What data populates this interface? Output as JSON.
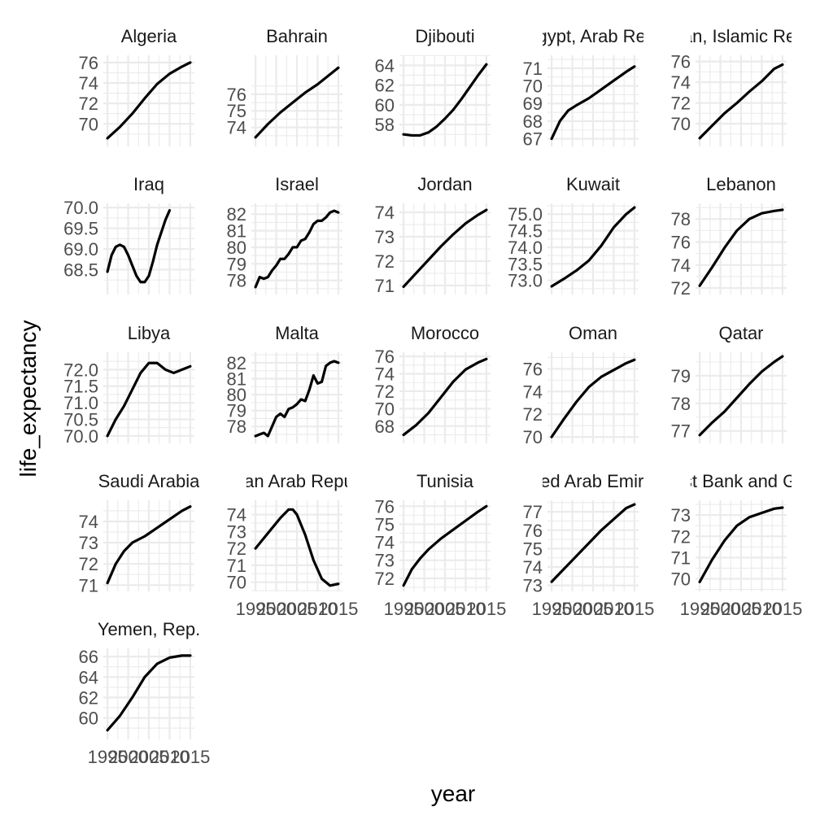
{
  "chart_data": {
    "type": "line",
    "xlabel": "year",
    "ylabel": "life_expectancy",
    "x_range": [
      1995,
      2015
    ],
    "x_ticks": [
      1995,
      2000,
      2005,
      2010,
      2015
    ],
    "x_tick_labels": [
      "1995",
      "2000",
      "2005",
      "2010",
      "2015"
    ],
    "grid": true,
    "facet_columns": 5,
    "facets": [
      {
        "title": "Algeria",
        "ylim": [
          68.2,
          76.3
        ],
        "y_ticks": [
          70,
          72,
          74,
          76
        ],
        "points": [
          [
            1995,
            68.6
          ],
          [
            1998,
            69.7
          ],
          [
            2001,
            71.0
          ],
          [
            2004,
            72.5
          ],
          [
            2007,
            73.9
          ],
          [
            2010,
            74.9
          ],
          [
            2013,
            75.6
          ],
          [
            2015,
            76.0
          ]
        ]
      },
      {
        "title": "Bahrain",
        "ylim": [
          73.1,
          78.1
        ],
        "y_ticks": [
          74,
          75,
          76
        ],
        "points": [
          [
            1995,
            73.4
          ],
          [
            1998,
            74.2
          ],
          [
            2001,
            74.9
          ],
          [
            2004,
            75.5
          ],
          [
            2007,
            76.1
          ],
          [
            2010,
            76.6
          ],
          [
            2013,
            77.2
          ],
          [
            2015,
            77.6
          ]
        ]
      },
      {
        "title": "Djibouti",
        "ylim": [
          56.2,
          64.6
        ],
        "y_ticks": [
          58,
          60,
          62,
          64
        ],
        "points": [
          [
            1995,
            57.0
          ],
          [
            1997,
            56.9
          ],
          [
            1999,
            56.9
          ],
          [
            2001,
            57.2
          ],
          [
            2003,
            57.8
          ],
          [
            2005,
            58.6
          ],
          [
            2007,
            59.5
          ],
          [
            2009,
            60.6
          ],
          [
            2011,
            61.8
          ],
          [
            2013,
            63.0
          ],
          [
            2015,
            64.1
          ]
        ]
      },
      {
        "title": "Egypt, Arab Rep.",
        "ylim": [
          66.8,
          71.5
        ],
        "y_ticks": [
          67,
          68,
          69,
          70,
          71
        ],
        "points": [
          [
            1995,
            67.0
          ],
          [
            1997,
            68.0
          ],
          [
            1999,
            68.6
          ],
          [
            2001,
            68.9
          ],
          [
            2004,
            69.3
          ],
          [
            2007,
            69.8
          ],
          [
            2010,
            70.3
          ],
          [
            2013,
            70.8
          ],
          [
            2015,
            71.1
          ]
        ]
      },
      {
        "title": "Iran, Islamic Rep.",
        "ylim": [
          68.2,
          76.2
        ],
        "y_ticks": [
          70,
          72,
          74,
          76
        ],
        "points": [
          [
            1995,
            68.6
          ],
          [
            1998,
            69.8
          ],
          [
            2001,
            71.0
          ],
          [
            2004,
            72.0
          ],
          [
            2007,
            73.1
          ],
          [
            2010,
            74.1
          ],
          [
            2013,
            75.3
          ],
          [
            2015,
            75.7
          ]
        ]
      },
      {
        "title": "Iraq",
        "ylim": [
          68.0,
          70.0
        ],
        "y_ticks": [
          68.5,
          69.0,
          69.5,
          70.0
        ],
        "points": [
          [
            1995,
            68.45
          ],
          [
            1996,
            68.85
          ],
          [
            1997,
            69.05
          ],
          [
            1998,
            69.1
          ],
          [
            1999,
            69.05
          ],
          [
            2000,
            68.85
          ],
          [
            2001,
            68.6
          ],
          [
            2002,
            68.35
          ],
          [
            2003,
            68.2
          ],
          [
            2004,
            68.2
          ],
          [
            2005,
            68.35
          ],
          [
            2006,
            68.7
          ],
          [
            2007,
            69.1
          ],
          [
            2008,
            69.4
          ],
          [
            2009,
            69.7
          ],
          [
            2010,
            69.93
          ]
        ]
      },
      {
        "title": "Israel",
        "ylim": [
          77.4,
          82.4
        ],
        "y_ticks": [
          78,
          79,
          80,
          81,
          82
        ],
        "points": [
          [
            1995,
            77.6
          ],
          [
            1996,
            78.2
          ],
          [
            1997,
            78.1
          ],
          [
            1998,
            78.2
          ],
          [
            1999,
            78.6
          ],
          [
            2000,
            78.9
          ],
          [
            2001,
            79.3
          ],
          [
            2002,
            79.3
          ],
          [
            2003,
            79.6
          ],
          [
            2004,
            80.0
          ],
          [
            2005,
            80.0
          ],
          [
            2006,
            80.4
          ],
          [
            2007,
            80.5
          ],
          [
            2008,
            80.9
          ],
          [
            2009,
            81.4
          ],
          [
            2010,
            81.6
          ],
          [
            2011,
            81.6
          ],
          [
            2012,
            81.8
          ],
          [
            2013,
            82.1
          ],
          [
            2014,
            82.2
          ],
          [
            2015,
            82.1
          ]
        ]
      },
      {
        "title": "Jordan",
        "ylim": [
          70.8,
          74.2
        ],
        "y_ticks": [
          71,
          72,
          73,
          74
        ],
        "points": [
          [
            1995,
            70.95
          ],
          [
            1998,
            71.5
          ],
          [
            2001,
            72.05
          ],
          [
            2004,
            72.6
          ],
          [
            2007,
            73.1
          ],
          [
            2010,
            73.55
          ],
          [
            2013,
            73.9
          ],
          [
            2015,
            74.1
          ]
        ]
      },
      {
        "title": "Kuwait",
        "ylim": [
          72.7,
          75.2
        ],
        "y_ticks": [
          73.0,
          73.5,
          74.0,
          74.5,
          75.0
        ],
        "points": [
          [
            1995,
            72.82
          ],
          [
            1998,
            73.05
          ],
          [
            2001,
            73.3
          ],
          [
            2004,
            73.6
          ],
          [
            2007,
            74.05
          ],
          [
            2010,
            74.6
          ],
          [
            2013,
            75.0
          ],
          [
            2015,
            75.2
          ]
        ]
      },
      {
        "title": "Lebanon",
        "ylim": [
          71.8,
          79.0
        ],
        "y_ticks": [
          72,
          74,
          76,
          78
        ],
        "points": [
          [
            1995,
            72.2
          ],
          [
            1998,
            73.8
          ],
          [
            2001,
            75.5
          ],
          [
            2004,
            77.0
          ],
          [
            2007,
            78.0
          ],
          [
            2010,
            78.5
          ],
          [
            2013,
            78.7
          ],
          [
            2015,
            78.8
          ]
        ]
      },
      {
        "title": "Libya",
        "ylim": [
          69.9,
          72.4
        ],
        "y_ticks": [
          70.0,
          70.5,
          71.0,
          71.5,
          72.0
        ],
        "points": [
          [
            1995,
            70.0
          ],
          [
            1997,
            70.5
          ],
          [
            1999,
            70.9
          ],
          [
            2001,
            71.4
          ],
          [
            2003,
            71.9
          ],
          [
            2005,
            72.2
          ],
          [
            2007,
            72.2
          ],
          [
            2009,
            72.0
          ],
          [
            2011,
            71.9
          ],
          [
            2013,
            72.0
          ],
          [
            2015,
            72.1
          ]
        ]
      },
      {
        "title": "Malta",
        "ylim": [
          77.2,
          82.4
        ],
        "y_ticks": [
          78,
          79,
          80,
          81,
          82
        ],
        "points": [
          [
            1995,
            77.4
          ],
          [
            1996,
            77.5
          ],
          [
            1997,
            77.6
          ],
          [
            1998,
            77.4
          ],
          [
            1999,
            78.0
          ],
          [
            2000,
            78.6
          ],
          [
            2001,
            78.8
          ],
          [
            2002,
            78.6
          ],
          [
            2003,
            79.1
          ],
          [
            2004,
            79.2
          ],
          [
            2005,
            79.4
          ],
          [
            2006,
            79.7
          ],
          [
            2007,
            79.6
          ],
          [
            2008,
            80.3
          ],
          [
            2009,
            81.2
          ],
          [
            2010,
            80.7
          ],
          [
            2011,
            80.8
          ],
          [
            2012,
            81.8
          ],
          [
            2013,
            82.0
          ],
          [
            2014,
            82.1
          ],
          [
            2015,
            82.0
          ]
        ]
      },
      {
        "title": "Morocco",
        "ylim": [
          66.5,
          76.0
        ],
        "y_ticks": [
          68,
          70,
          72,
          74,
          76
        ],
        "points": [
          [
            1995,
            67.0
          ],
          [
            1998,
            68.1
          ],
          [
            2001,
            69.5
          ],
          [
            2004,
            71.3
          ],
          [
            2007,
            73.1
          ],
          [
            2010,
            74.5
          ],
          [
            2013,
            75.3
          ],
          [
            2015,
            75.7
          ]
        ]
      },
      {
        "title": "Oman",
        "ylim": [
          69.8,
          77.1
        ],
        "y_ticks": [
          70,
          72,
          74,
          76
        ],
        "points": [
          [
            1995,
            70.0
          ],
          [
            1998,
            71.6
          ],
          [
            2001,
            73.1
          ],
          [
            2004,
            74.4
          ],
          [
            2007,
            75.3
          ],
          [
            2010,
            75.9
          ],
          [
            2013,
            76.5
          ],
          [
            2015,
            76.8
          ]
        ]
      },
      {
        "title": "Qatar",
        "ylim": [
          76.7,
          79.7
        ],
        "y_ticks": [
          77,
          78,
          79
        ],
        "points": [
          [
            1995,
            76.85
          ],
          [
            1998,
            77.3
          ],
          [
            2001,
            77.7
          ],
          [
            2004,
            78.2
          ],
          [
            2007,
            78.7
          ],
          [
            2010,
            79.15
          ],
          [
            2013,
            79.5
          ],
          [
            2015,
            79.7
          ]
        ]
      },
      {
        "title": "Saudi Arabia",
        "ylim": [
          70.9,
          74.8
        ],
        "y_ticks": [
          71,
          72,
          73,
          74
        ],
        "points": [
          [
            1995,
            71.1
          ],
          [
            1997,
            72.0
          ],
          [
            1999,
            72.6
          ],
          [
            2001,
            73.0
          ],
          [
            2004,
            73.3
          ],
          [
            2007,
            73.7
          ],
          [
            2010,
            74.1
          ],
          [
            2013,
            74.5
          ],
          [
            2015,
            74.7
          ]
        ]
      },
      {
        "title": "Syrian Arab Republic",
        "ylim": [
          69.7,
          74.6
        ],
        "y_ticks": [
          70,
          71,
          72,
          73,
          74
        ],
        "points": [
          [
            1995,
            72.0
          ],
          [
            1997,
            72.6
          ],
          [
            1999,
            73.2
          ],
          [
            2001,
            73.8
          ],
          [
            2003,
            74.3
          ],
          [
            2004,
            74.3
          ],
          [
            2005,
            74.0
          ],
          [
            2007,
            72.8
          ],
          [
            2009,
            71.3
          ],
          [
            2011,
            70.2
          ],
          [
            2013,
            69.8
          ],
          [
            2015,
            69.9
          ]
        ]
      },
      {
        "title": "Tunisia",
        "ylim": [
          71.5,
          76.1
        ],
        "y_ticks": [
          72,
          73,
          74,
          75,
          76
        ],
        "points": [
          [
            1995,
            71.6
          ],
          [
            1997,
            72.5
          ],
          [
            1999,
            73.1
          ],
          [
            2001,
            73.6
          ],
          [
            2004,
            74.2
          ],
          [
            2007,
            74.7
          ],
          [
            2010,
            75.2
          ],
          [
            2013,
            75.7
          ],
          [
            2015,
            76.0
          ]
        ]
      },
      {
        "title": "United Arab Emirates",
        "ylim": [
          72.9,
          77.4
        ],
        "y_ticks": [
          73,
          74,
          75,
          76,
          77
        ],
        "points": [
          [
            1995,
            73.2
          ],
          [
            1998,
            73.9
          ],
          [
            2001,
            74.6
          ],
          [
            2004,
            75.3
          ],
          [
            2007,
            76.0
          ],
          [
            2010,
            76.6
          ],
          [
            2013,
            77.2
          ],
          [
            2015,
            77.4
          ]
        ]
      },
      {
        "title": "West Bank and Gaza",
        "ylim": [
          69.6,
          73.5
        ],
        "y_ticks": [
          70,
          71,
          72,
          73
        ],
        "points": [
          [
            1995,
            69.85
          ],
          [
            1998,
            70.9
          ],
          [
            2001,
            71.8
          ],
          [
            2004,
            72.5
          ],
          [
            2007,
            72.9
          ],
          [
            2010,
            73.1
          ],
          [
            2013,
            73.3
          ],
          [
            2015,
            73.35
          ]
        ]
      },
      {
        "title": "Yemen, Rep.",
        "ylim": [
          58.3,
          66.4
        ],
        "y_ticks": [
          60,
          62,
          64,
          66
        ],
        "points": [
          [
            1995,
            58.8
          ],
          [
            1998,
            60.2
          ],
          [
            2001,
            62.0
          ],
          [
            2004,
            64.0
          ],
          [
            2007,
            65.3
          ],
          [
            2010,
            65.9
          ],
          [
            2013,
            66.1
          ],
          [
            2015,
            66.1
          ]
        ]
      }
    ]
  }
}
